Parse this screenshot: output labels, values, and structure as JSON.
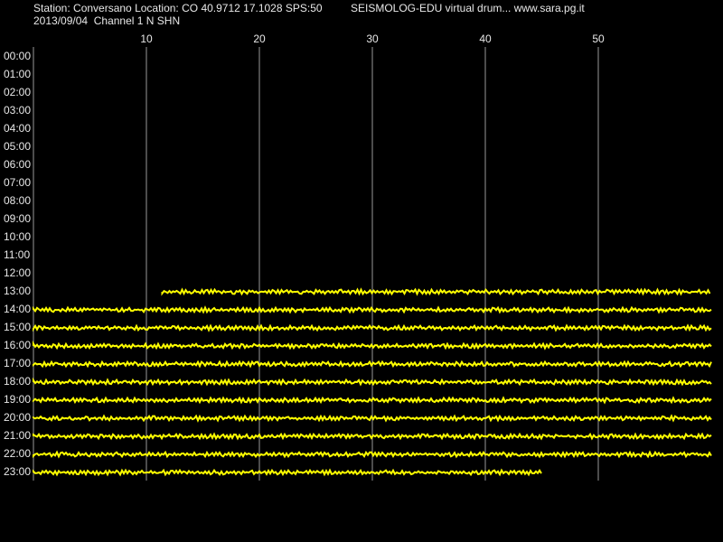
{
  "chart_data": {
    "type": "helicorder",
    "title": "Station: Conversano Location: CO 40.9712 17.1028 SPS:50",
    "subtitle": "SEISMOLOG-EDU virtual drum... www.sara.pg.it",
    "date_channel": "2013/09/04  Channel 1 N SHN",
    "xlim": [
      0,
      60
    ],
    "xticks": [
      10,
      20,
      30,
      40,
      50
    ],
    "grid": true,
    "categories": [
      "00:00",
      "01:00",
      "02:00",
      "03:00",
      "04:00",
      "05:00",
      "06:00",
      "07:00",
      "08:00",
      "09:00",
      "10:00",
      "11:00",
      "12:00",
      "13:00",
      "14:00",
      "15:00",
      "16:00",
      "17:00",
      "18:00",
      "19:00",
      "20:00",
      "21:00",
      "22:00",
      "23:00"
    ],
    "trace_start": [
      null,
      null,
      null,
      null,
      null,
      null,
      null,
      null,
      null,
      null,
      null,
      null,
      null,
      11.4,
      0,
      0,
      0,
      0,
      0,
      0,
      0,
      0,
      0,
      0
    ],
    "trace_end": [
      null,
      null,
      null,
      null,
      null,
      null,
      null,
      null,
      null,
      null,
      null,
      null,
      null,
      60,
      60,
      60,
      60,
      60,
      60,
      60,
      60,
      60,
      60,
      45.0
    ],
    "color": "#ffff00"
  }
}
